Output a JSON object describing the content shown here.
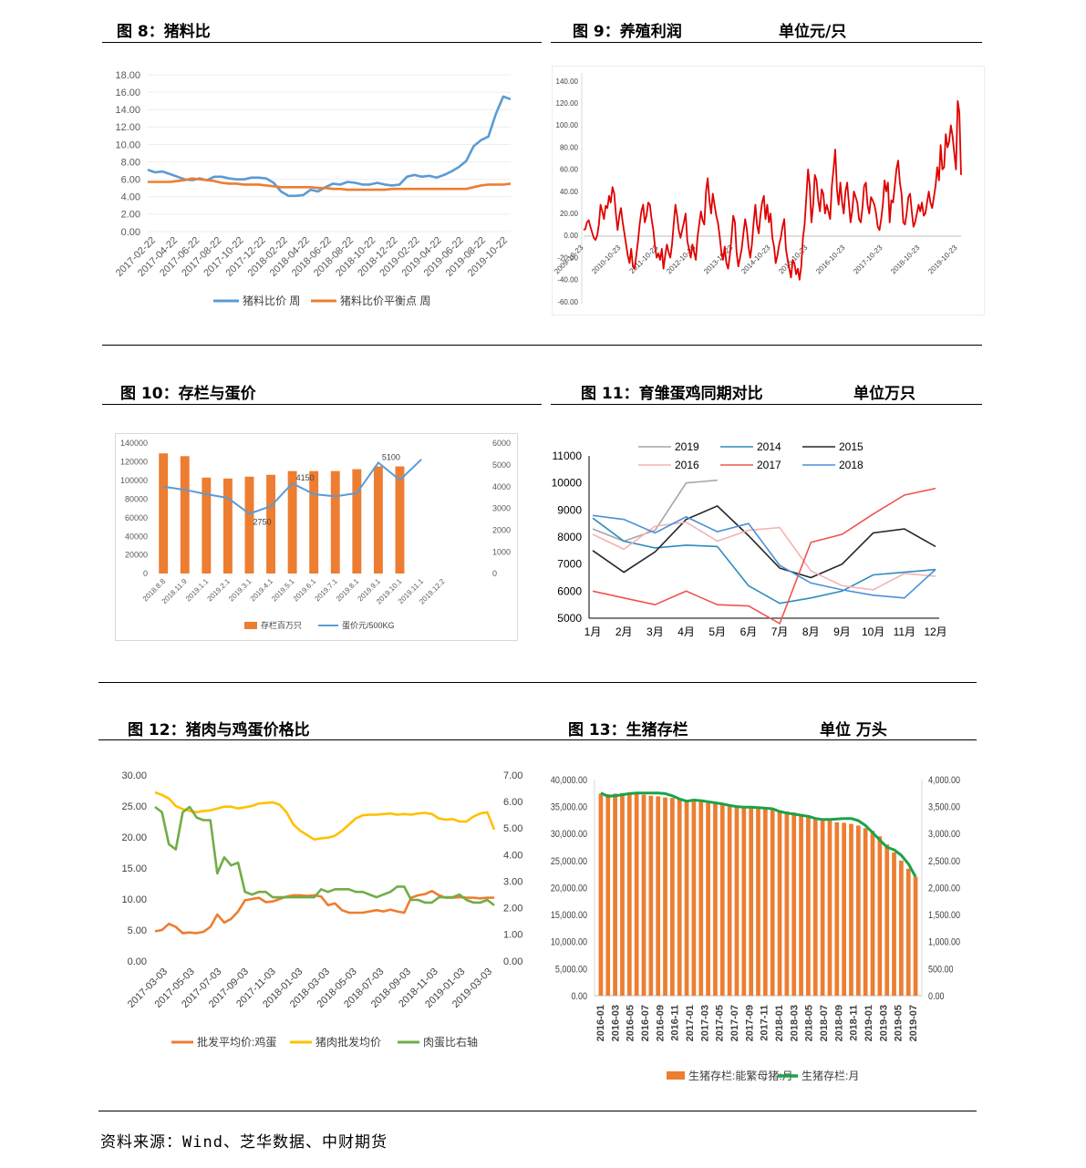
{
  "fig8": {
    "title": "图 8：猪料比",
    "chart_data": {
      "type": "line",
      "ylim": [
        0,
        18
      ],
      "yticks": [
        "18.00",
        "16.00",
        "14.00",
        "12.00",
        "10.00",
        "8.00",
        "6.00",
        "4.00",
        "2.00",
        "0.00"
      ],
      "xticks": [
        "2017-02-22",
        "2017-04-22",
        "2017-06-22",
        "2017-08-22",
        "2017-10-22",
        "2017-12-22",
        "2018-02-22",
        "2018-04-22",
        "2018-06-22",
        "2018-08-22",
        "2018-10-22",
        "2018-12-22",
        "2019-02-22",
        "2019-04-22",
        "2019-06-22",
        "2019-08-22",
        "2019-10-22"
      ],
      "legend_position": "bottom",
      "series": [
        {
          "name": "猪料比价 周",
          "color": "#5b9bd5",
          "values": [
            7.1,
            6.8,
            6.9,
            6.6,
            6.3,
            6.0,
            5.9,
            6.1,
            5.9,
            6.3,
            6.3,
            6.1,
            6.0,
            6.0,
            6.2,
            6.2,
            6.1,
            5.6,
            4.6,
            4.1,
            4.1,
            4.2,
            4.8,
            4.6,
            5.1,
            5.5,
            5.4,
            5.7,
            5.6,
            5.4,
            5.4,
            5.6,
            5.4,
            5.3,
            5.4,
            6.3,
            6.5,
            6.3,
            6.4,
            6.2,
            6.5,
            6.9,
            7.4,
            8.1,
            9.8,
            10.5,
            10.9,
            13.5,
            15.5,
            15.2
          ]
        },
        {
          "name": "猪料比价平衡点 周",
          "color": "#ed7d31",
          "values": [
            5.7,
            5.7,
            5.7,
            5.7,
            5.8,
            5.9,
            6.1,
            6.0,
            5.9,
            5.8,
            5.6,
            5.5,
            5.5,
            5.4,
            5.4,
            5.4,
            5.3,
            5.2,
            5.1,
            5.1,
            5.1,
            5.1,
            5.1,
            5.0,
            5.0,
            4.9,
            4.9,
            4.8,
            4.8,
            4.8,
            4.8,
            4.8,
            4.8,
            4.9,
            4.9,
            4.9,
            4.9,
            4.9,
            4.9,
            4.9,
            4.9,
            4.9,
            4.9,
            4.9,
            5.1,
            5.3,
            5.4,
            5.4,
            5.4,
            5.5
          ]
        }
      ]
    }
  },
  "fig9": {
    "title": "图 9：养殖利润",
    "unit": "单位元/只",
    "chart_data": {
      "type": "line",
      "ylim": [
        -60,
        140
      ],
      "yticks": [
        "140.00",
        "120.00",
        "100.00",
        "80.00",
        "60.00",
        "40.00",
        "20.00",
        "0.00",
        "-20.00",
        "-40.00",
        "-60.00"
      ],
      "xticks": [
        "2009-10-23",
        "2010-10-23",
        "2011-10-23",
        "2012-10-23",
        "2013-10-23",
        "2014-10-23",
        "2015-10-23",
        "2016-10-23",
        "2017-10-23",
        "2018-10-23",
        "2019-10-23"
      ],
      "series": [
        {
          "name": "",
          "color": "#e00000",
          "values": [
            5,
            6,
            12,
            14,
            8,
            3,
            -2,
            -4,
            0,
            10,
            28,
            22,
            15,
            27,
            25,
            36,
            30,
            44,
            38,
            20,
            5,
            18,
            25,
            12,
            2,
            -8,
            -18,
            -25,
            -12,
            -28,
            -30,
            -18,
            -5,
            10,
            22,
            28,
            12,
            18,
            30,
            28,
            15,
            5,
            -10,
            -20,
            -16,
            -22,
            -12,
            -30,
            -18,
            -8,
            -15,
            -20,
            -8,
            10,
            28,
            18,
            5,
            -2,
            5,
            12,
            20,
            -5,
            -12,
            -20,
            -8,
            -15,
            -22,
            -2,
            10,
            22,
            14,
            10,
            40,
            52,
            32,
            20,
            38,
            28,
            18,
            12,
            0,
            -15,
            -22,
            -10,
            -25,
            -30,
            -18,
            -2,
            18,
            12,
            -15,
            -28,
            -20,
            -12,
            2,
            15,
            6,
            -10,
            -20,
            -8,
            12,
            28,
            10,
            2,
            18,
            30,
            36,
            15,
            28,
            12,
            20,
            -2,
            -10,
            -25,
            -18,
            -8,
            -2,
            8,
            15,
            -12,
            -22,
            -30,
            -38,
            -22,
            -25,
            -35,
            -30,
            -40,
            -28,
            -2,
            10,
            35,
            60,
            45,
            12,
            28,
            55,
            50,
            32,
            22,
            42,
            38,
            20,
            28,
            22,
            15,
            45,
            60,
            78,
            42,
            28,
            48,
            30,
            20,
            40,
            48,
            30,
            12,
            22,
            40,
            35,
            30,
            15,
            12,
            25,
            45,
            48,
            28,
            20,
            35,
            32,
            28,
            20,
            8,
            5,
            15,
            28,
            50,
            40,
            48,
            12,
            32,
            30,
            45,
            60,
            68,
            48,
            38,
            12,
            10,
            20,
            35,
            38,
            22,
            8,
            12,
            20,
            28,
            22,
            30,
            18,
            20,
            30,
            40,
            30,
            25,
            35,
            45,
            62,
            50,
            82,
            60,
            62,
            92,
            80,
            85,
            100,
            90,
            75,
            60,
            122,
            112,
            55
          ]
        }
      ]
    }
  },
  "fig10": {
    "title": "图 10：存栏与蛋价",
    "chart_data": {
      "type": "bar",
      "categories": [
        "2018.8.8",
        "2018.11.9",
        "2019.1.1",
        "2019.2.1",
        "2019.3.1",
        "2019.4.1",
        "2019.5.1",
        "2019.6.1",
        "2019.7.1",
        "2019.8.1",
        "2019.9.1",
        "2019.10.1",
        "2019.11.1",
        "2019.12.2"
      ],
      "ylim_left": [
        0,
        140000
      ],
      "yticks_left": [
        "140000",
        "120000",
        "100000",
        "80000",
        "60000",
        "40000",
        "20000",
        "0"
      ],
      "ylim_right": [
        0,
        6000
      ],
      "yticks_right": [
        "6000",
        "5000",
        "4000",
        "3000",
        "2000",
        "1000",
        "0"
      ],
      "legend_position": "bottom",
      "series": [
        {
          "name": "存栏百万只",
          "color": "#ed7d31",
          "axis": "left",
          "type": "bar",
          "values": [
            129000,
            126000,
            103000,
            102000,
            104000,
            106000,
            110000,
            110000,
            110000,
            112000,
            115000,
            115000,
            null,
            null
          ]
        },
        {
          "name": "蛋价元/500KG",
          "color": "#5b9bd5",
          "axis": "right",
          "type": "line",
          "values": [
            4000,
            3850,
            3650,
            3480,
            2750,
            3100,
            4150,
            3650,
            3550,
            3700,
            5100,
            4300,
            5250,
            null
          ]
        }
      ],
      "data_labels": [
        {
          "index": 4,
          "text": "2750"
        },
        {
          "index": 6,
          "text": "4150"
        },
        {
          "index": 10,
          "text": "5100"
        }
      ]
    }
  },
  "fig11": {
    "title": "图 11：育雏蛋鸡同期对比",
    "unit": "单位万只",
    "chart_data": {
      "type": "line",
      "categories": [
        "1月",
        "2月",
        "3月",
        "4月",
        "5月",
        "6月",
        "7月",
        "8月",
        "9月",
        "10月",
        "11月",
        "12月"
      ],
      "ylim": [
        5000,
        11000
      ],
      "yticks": [
        "11000",
        "10000",
        "9000",
        "8000",
        "7000",
        "6000",
        "5000"
      ],
      "legend_position": "top",
      "series": [
        {
          "name": "2019",
          "color": "#a6a6a6",
          "values": [
            8300,
            7850,
            8250,
            10000,
            10100,
            null,
            null,
            null,
            null,
            null,
            null,
            null
          ]
        },
        {
          "name": "2014",
          "color": "#2e8bc0",
          "values": [
            8700,
            7850,
            7600,
            7700,
            7650,
            6200,
            5550,
            5750,
            6000,
            6600,
            6700,
            6800
          ]
        },
        {
          "name": "2015",
          "color": "#262626",
          "values": [
            7500,
            6700,
            7450,
            8650,
            9150,
            8050,
            6850,
            6500,
            7000,
            8150,
            8300,
            7650
          ]
        },
        {
          "name": "2016",
          "color": "#f4b3b3",
          "values": [
            8100,
            7550,
            8400,
            8550,
            7850,
            8250,
            8350,
            6750,
            6200,
            6050,
            6650,
            6550
          ]
        },
        {
          "name": "2017",
          "color": "#ef5350",
          "values": [
            6000,
            5750,
            5500,
            6000,
            5500,
            5450,
            4800,
            7800,
            8100,
            8850,
            9550,
            9800
          ]
        },
        {
          "name": "2018",
          "color": "#4a90d9",
          "values": [
            8800,
            8650,
            8150,
            8750,
            8200,
            8500,
            6950,
            6300,
            6050,
            5850,
            5750,
            6800
          ]
        }
      ]
    }
  },
  "fig12": {
    "title": "图 12：猪肉与鸡蛋价格比",
    "chart_data": {
      "type": "line",
      "ylim_left": [
        0,
        30
      ],
      "yticks_left": [
        "30.00",
        "25.00",
        "20.00",
        "15.00",
        "10.00",
        "5.00",
        "0.00"
      ],
      "ylim_right": [
        0,
        7
      ],
      "yticks_right": [
        "7.00",
        "6.00",
        "5.00",
        "4.00",
        "3.00",
        "2.00",
        "1.00",
        "0.00"
      ],
      "xticks": [
        "2017-03-03",
        "2017-05-03",
        "2017-07-03",
        "2017-09-03",
        "2017-11-03",
        "2018-01-03",
        "2018-03-03",
        "2018-05-03",
        "2018-07-03",
        "2018-09-03",
        "2018-11-03",
        "2019-01-03",
        "2019-03-03"
      ],
      "legend_position": "bottom",
      "series": [
        {
          "name": "批发平均价:鸡蛋",
          "color": "#ed7d31",
          "axis": "left",
          "values": [
            4.8,
            5.0,
            6.0,
            5.5,
            4.5,
            4.6,
            4.5,
            4.7,
            5.5,
            7.5,
            6.2,
            6.8,
            8.0,
            9.8,
            10.0,
            10.2,
            9.5,
            9.6,
            10.0,
            10.4,
            10.6,
            10.6,
            10.5,
            10.6,
            10.4,
            9.0,
            9.3,
            8.2,
            7.8,
            7.8,
            7.8,
            8.0,
            8.2,
            8.0,
            8.3,
            8.0,
            7.8,
            10.2,
            10.6,
            10.8,
            11.3,
            10.6,
            10.2,
            10.2,
            10.3,
            10.2,
            10.2,
            10.1,
            10.2,
            10.2
          ]
        },
        {
          "name": "猪肉批发均价",
          "color": "#ffc000",
          "axis": "left",
          "values": [
            27.2,
            26.8,
            26.2,
            25.0,
            24.5,
            24.2,
            24.0,
            24.2,
            24.3,
            24.6,
            24.9,
            24.9,
            24.6,
            24.8,
            25.0,
            25.4,
            25.5,
            25.6,
            25.2,
            24.0,
            22.0,
            21.0,
            20.3,
            19.6,
            19.8,
            19.9,
            20.2,
            21.0,
            22.0,
            23.0,
            23.5,
            23.6,
            23.6,
            23.7,
            23.8,
            23.6,
            23.7,
            23.6,
            23.8,
            23.9,
            23.7,
            23.0,
            22.8,
            22.9,
            22.5,
            22.5,
            23.3,
            23.8,
            24.0,
            21.2
          ]
        },
        {
          "name": "肉蛋比右轴",
          "color": "#70ad47",
          "axis": "right",
          "values": [
            5.8,
            5.6,
            4.4,
            4.2,
            5.6,
            5.8,
            5.4,
            5.3,
            5.3,
            3.3,
            3.9,
            3.6,
            3.7,
            2.6,
            2.5,
            2.6,
            2.6,
            2.4,
            2.4,
            2.4,
            2.4,
            2.4,
            2.4,
            2.4,
            2.7,
            2.6,
            2.7,
            2.7,
            2.7,
            2.6,
            2.6,
            2.5,
            2.4,
            2.5,
            2.6,
            2.8,
            2.8,
            2.3,
            2.3,
            2.2,
            2.2,
            2.4,
            2.4,
            2.4,
            2.5,
            2.3,
            2.2,
            2.2,
            2.3,
            2.1
          ]
        }
      ]
    }
  },
  "fig13": {
    "title": "图 13：生猪存栏",
    "unit": "单位 万头",
    "chart_data": {
      "type": "bar",
      "xticks": [
        "2016-01",
        "2016-03",
        "2016-05",
        "2016-07",
        "2016-09",
        "2016-11",
        "2017-01",
        "2017-03",
        "2017-05",
        "2017-07",
        "2017-09",
        "2017-11",
        "2018-01",
        "2018-03",
        "2018-05",
        "2018-07",
        "2018-09",
        "2018-11",
        "2019-01",
        "2019-03",
        "2019-05",
        "2019-07"
      ],
      "ylim_left": [
        0,
        40000
      ],
      "yticks_left": [
        "40,000.00",
        "35,000.00",
        "30,000.00",
        "25,000.00",
        "20,000.00",
        "15,000.00",
        "10,000.00",
        "5,000.00",
        "0.00"
      ],
      "ylim_right": [
        0,
        4000
      ],
      "yticks_right": [
        "4,000.00",
        "3,500.00",
        "3,000.00",
        "2,500.00",
        "2,000.00",
        "1,500.00",
        "1,000.00",
        "500.00",
        "0.00"
      ],
      "legend_position": "bottom",
      "series": [
        {
          "name": "生猪存栏:能繁母猪:月",
          "color": "#ed7d31",
          "axis": "left",
          "type": "bar",
          "values": [
            37400,
            37300,
            37400,
            37500,
            37400,
            37300,
            37200,
            37000,
            36900,
            36700,
            36600,
            36400,
            36200,
            36000,
            35900,
            35700,
            35500,
            35400,
            35300,
            35100,
            34900,
            34700,
            34600,
            34500,
            34400,
            34300,
            34100,
            33900,
            33600,
            33400,
            33000,
            32600,
            32400,
            32100,
            32000,
            31800,
            31500,
            31000,
            30500,
            29500,
            28000,
            26500,
            25000,
            23500,
            22000
          ]
        },
        {
          "name": "生猪存栏:月",
          "color": "#1aa348",
          "axis": "right",
          "type": "line",
          "values": [
            3750,
            3690,
            3700,
            3720,
            3740,
            3750,
            3750,
            3750,
            3750,
            3740,
            3700,
            3640,
            3600,
            3620,
            3610,
            3590,
            3570,
            3550,
            3520,
            3500,
            3490,
            3490,
            3480,
            3470,
            3460,
            3410,
            3380,
            3360,
            3340,
            3320,
            3280,
            3260,
            3260,
            3270,
            3280,
            3280,
            3240,
            3150,
            3020,
            2880,
            2750,
            2700,
            2600,
            2440,
            2200
          ]
        }
      ]
    }
  },
  "source": "资料来源：Wind、芝华数据、中财期货"
}
